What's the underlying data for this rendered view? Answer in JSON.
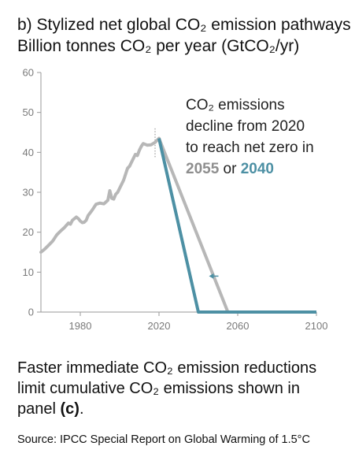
{
  "header": {
    "title": "b) Stylized net global CO₂ emission pathways",
    "subtitle": "Billion tonnes CO₂ per year (GtCO₂/yr)"
  },
  "chart_data": {
    "type": "line",
    "title": "b) Stylized net global CO₂ emission pathways",
    "ylabel": "Billion tonnes CO₂ per year (GtCO₂/yr)",
    "xlim": [
      1960,
      2100
    ],
    "ylim": [
      0,
      60
    ],
    "x_ticks": [
      1980,
      2020,
      2060,
      2100
    ],
    "y_ticks": [
      0,
      10,
      20,
      30,
      40,
      50,
      60
    ],
    "grid": false,
    "colors": {
      "history": "#b7b7b7",
      "path_2055": "#b7b7b7",
      "path_2040": "#4d90a4",
      "axis": "#9a9a9a"
    },
    "series": [
      {
        "id": "history",
        "x": [
          1960,
          1962,
          1964,
          1966,
          1968,
          1970,
          1972,
          1974,
          1975,
          1976,
          1978,
          1979,
          1980,
          1981,
          1982,
          1983,
          1984,
          1986,
          1988,
          1990,
          1992,
          1994,
          1995,
          1996,
          1997,
          1998,
          1999,
          2000,
          2002,
          2004,
          2005,
          2006,
          2008,
          2009,
          2010,
          2011,
          2012,
          2014,
          2016,
          2018,
          2020
        ],
        "values": [
          15,
          15.8,
          16.8,
          17.8,
          19.3,
          20.3,
          21.2,
          22.3,
          22.0,
          23,
          23.8,
          23.4,
          22.8,
          22.4,
          22.5,
          23.0,
          24.2,
          25.5,
          27,
          27.3,
          27.1,
          28,
          30.4,
          28.5,
          28.3,
          29.5,
          30.0,
          31.0,
          33,
          36,
          36.5,
          37.5,
          39.5,
          39.2,
          40.5,
          41.5,
          42.2,
          41.8,
          41.9,
          42.5,
          43.5
        ]
      },
      {
        "id": "pathway_2055",
        "x": [
          2020,
          2055,
          2100
        ],
        "values": [
          43.5,
          0,
          0
        ]
      },
      {
        "id": "pathway_2040",
        "x": [
          2020,
          2040,
          2100
        ],
        "values": [
          43.5,
          0,
          0
        ]
      }
    ],
    "annotation": {
      "line1": "CO₂ emissions",
      "line2": "decline from 2020",
      "line3": "to reach net zero in",
      "year_late": "2055",
      "connector": " or ",
      "year_early": "2040"
    }
  },
  "caption": {
    "text": "Faster immediate CO₂ emission reductions limit cumulative CO₂ emissions shown in panel ",
    "panel_ref": "(c)",
    "end": "."
  },
  "source": "Source: IPCC Special Report on Global Warming of 1.5°C"
}
